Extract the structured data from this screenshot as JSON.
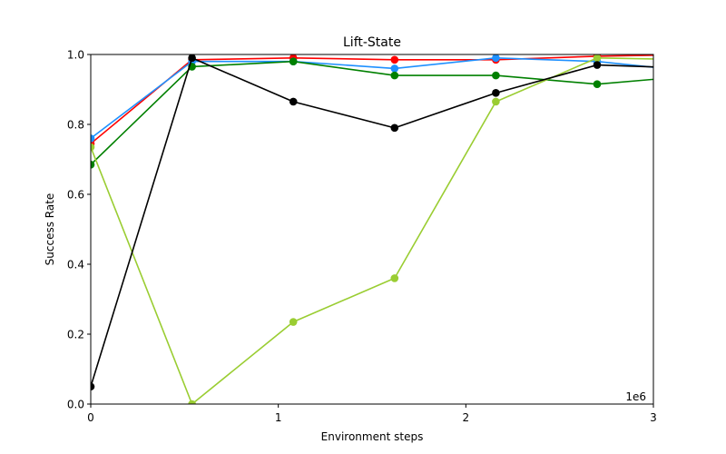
{
  "chart_data": {
    "type": "line",
    "title": "Lift-State",
    "xlabel": "Environment steps",
    "ylabel": "Success Rate",
    "x_offset_label": "1e6",
    "xlim": [
      0,
      3000000
    ],
    "ylim": [
      0,
      1.0
    ],
    "x_ticks": [
      0,
      1000000,
      2000000,
      3000000
    ],
    "x_tick_labels": [
      "0",
      "1",
      "2",
      "3"
    ],
    "y_ticks": [
      0.0,
      0.2,
      0.4,
      0.6,
      0.8,
      1.0
    ],
    "y_tick_labels": [
      "0.0",
      "0.2",
      "0.4",
      "0.6",
      "0.8",
      "1.0"
    ],
    "grid": false,
    "legend": "none",
    "x": [
      0,
      540000,
      1080000,
      1620000,
      2160000,
      2700000,
      3240000
    ],
    "series": [
      {
        "color": "#ff0000",
        "values": [
          0.745,
          0.985,
          0.99,
          0.985,
          0.985,
          0.995,
          1.0
        ]
      },
      {
        "color": "#1e90ff",
        "values": [
          0.76,
          0.98,
          0.98,
          0.96,
          0.99,
          0.98,
          0.95
        ]
      },
      {
        "color": "#008000",
        "values": [
          0.685,
          0.965,
          0.98,
          0.94,
          0.94,
          0.915,
          0.94
        ]
      },
      {
        "color": "#9acd32",
        "values": [
          0.735,
          0.0,
          0.235,
          0.36,
          0.865,
          0.99,
          0.985
        ]
      },
      {
        "color": "#000000",
        "values": [
          0.05,
          0.99,
          0.865,
          0.79,
          0.89,
          0.97,
          0.96
        ]
      }
    ]
  }
}
